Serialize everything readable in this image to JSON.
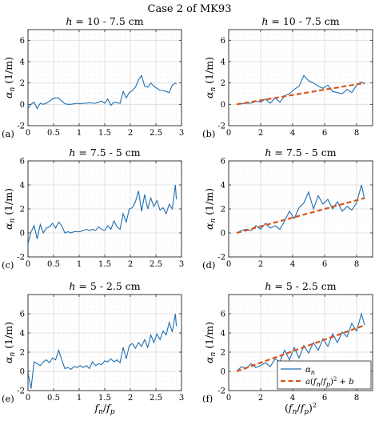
{
  "figure": {
    "title": "Case 2 of MK93",
    "xlabel_left": "f_n / f_p",
    "xlabel_right": "(f_n / f_p)^2",
    "ylabel": "α_n (1/m)",
    "legend": [
      {
        "label": "α_n",
        "style": "solid",
        "color": "#1f6fb0"
      },
      {
        "label": "a(f_n/f_p)^2 + b",
        "style": "dashed",
        "color": "#d95319"
      }
    ],
    "legend_placement": "bottom-right of panel (f)"
  },
  "colors": {
    "data": "#1f6fb0",
    "fit": "#d95319",
    "grid": "#d9d9d9"
  },
  "chart_data": [
    {
      "type": "line",
      "panel": "(a)",
      "title": "h = 10 - 7.5 cm",
      "xlim": [
        0,
        3
      ],
      "ylim": [
        -2,
        7
      ],
      "xticks": [
        0,
        0.5,
        1,
        1.5,
        2,
        2.5,
        3
      ],
      "xtick_labels": [
        "0",
        "0.5",
        "1",
        "1.5",
        "2",
        "2.5",
        "3"
      ],
      "yticks": [
        -2,
        0,
        2,
        4,
        6
      ],
      "ytick_labels": [
        "-2",
        "0",
        "2",
        "4",
        "6"
      ],
      "grid": true,
      "series": [
        {
          "x": [
            0.0,
            0.06,
            0.12,
            0.18,
            0.24,
            0.3,
            0.36,
            0.42,
            0.48,
            0.54,
            0.6,
            0.66,
            0.72,
            0.78,
            0.84,
            0.9,
            0.96,
            1.02,
            1.08,
            1.14,
            1.2,
            1.26,
            1.32,
            1.38,
            1.44,
            1.5,
            1.56,
            1.62,
            1.68,
            1.74,
            1.8,
            1.86,
            1.92,
            1.98,
            2.04,
            2.1,
            2.16,
            2.22,
            2.28,
            2.34,
            2.4,
            2.46,
            2.52,
            2.58,
            2.64,
            2.7,
            2.76,
            2.82,
            2.88,
            2.9
          ],
          "y": [
            -0.4,
            0.0,
            0.2,
            -0.4,
            0.1,
            0.0,
            0.1,
            0.3,
            0.5,
            0.6,
            0.6,
            0.3,
            0.05,
            0.0,
            0.0,
            0.05,
            0.1,
            0.05,
            0.1,
            0.1,
            0.15,
            0.1,
            0.1,
            0.2,
            0.3,
            0.1,
            0.5,
            -0.1,
            0.2,
            0.15,
            0.1,
            1.2,
            0.6,
            1.1,
            1.3,
            1.6,
            2.3,
            2.7,
            1.7,
            1.6,
            2.0,
            1.7,
            1.5,
            1.3,
            1.3,
            1.2,
            1.1,
            1.8,
            2.0,
            1.9
          ]
        }
      ]
    },
    {
      "type": "line",
      "panel": "(b)",
      "title": "h = 10 - 7.5 cm",
      "xlim": [
        0,
        9
      ],
      "ylim": [
        -2,
        7
      ],
      "xticks": [
        0,
        2,
        4,
        6,
        8
      ],
      "xtick_labels": [
        "0",
        "2",
        "4",
        "6",
        "8"
      ],
      "yticks": [
        -2,
        0,
        2,
        4,
        6
      ],
      "ytick_labels": [
        "-2",
        "0",
        "2",
        "4",
        "6"
      ],
      "grid": true,
      "series": [
        {
          "name": "α_n",
          "x": [
            0.5,
            0.8,
            1.1,
            1.4,
            1.7,
            2.0,
            2.3,
            2.6,
            2.9,
            3.2,
            3.5,
            3.8,
            4.1,
            4.4,
            4.7,
            5.0,
            5.3,
            5.6,
            5.9,
            6.2,
            6.5,
            6.8,
            7.1,
            7.4,
            7.7,
            8.0,
            8.3,
            8.5
          ],
          "y": [
            0.0,
            0.05,
            0.1,
            0.1,
            0.3,
            0.2,
            0.5,
            0.1,
            0.6,
            0.2,
            0.8,
            1.0,
            1.4,
            1.7,
            2.7,
            2.2,
            2.0,
            1.7,
            1.5,
            1.8,
            1.2,
            1.1,
            1.0,
            1.4,
            1.1,
            1.8,
            2.1,
            1.9
          ]
        },
        {
          "name": "a(f_n/f_p)^2 + b",
          "style": "dashed",
          "x": [
            0.5,
            8.5
          ],
          "y": [
            0.0,
            2.0
          ]
        }
      ]
    },
    {
      "type": "line",
      "panel": "(c)",
      "title": "h = 7.5 - 5 cm",
      "xlim": [
        0,
        3
      ],
      "ylim": [
        -2,
        6
      ],
      "xticks": [
        0,
        0.5,
        1,
        1.5,
        2,
        2.5,
        3
      ],
      "xtick_labels": [
        "0",
        "0.5",
        "1",
        "1.5",
        "2",
        "2.5",
        "3"
      ],
      "yticks": [
        -2,
        0,
        2,
        4,
        6
      ],
      "ytick_labels": [
        "-2",
        "0",
        "2",
        "4",
        "6"
      ],
      "grid": true,
      "series": [
        {
          "x": [
            0.0,
            0.06,
            0.12,
            0.18,
            0.24,
            0.3,
            0.36,
            0.42,
            0.48,
            0.54,
            0.6,
            0.66,
            0.72,
            0.78,
            0.84,
            0.9,
            0.96,
            1.02,
            1.08,
            1.14,
            1.2,
            1.26,
            1.32,
            1.38,
            1.44,
            1.5,
            1.56,
            1.62,
            1.68,
            1.74,
            1.8,
            1.86,
            1.92,
            1.98,
            2.04,
            2.1,
            2.16,
            2.22,
            2.28,
            2.34,
            2.4,
            2.46,
            2.52,
            2.58,
            2.64,
            2.7,
            2.76,
            2.82,
            2.88,
            2.9
          ],
          "y": [
            -0.9,
            0.1,
            0.6,
            -0.5,
            0.7,
            0.0,
            0.4,
            0.5,
            0.8,
            0.4,
            0.9,
            0.6,
            0.0,
            0.1,
            0.0,
            0.1,
            0.1,
            0.1,
            0.2,
            0.3,
            0.2,
            0.3,
            0.2,
            0.5,
            0.3,
            0.2,
            0.6,
            0.3,
            1.0,
            0.5,
            0.3,
            1.6,
            0.9,
            2.0,
            2.1,
            2.6,
            3.5,
            1.8,
            3.2,
            2.0,
            2.9,
            2.2,
            2.7,
            1.9,
            2.1,
            1.6,
            2.4,
            2.0,
            4.0,
            2.8
          ]
        }
      ]
    },
    {
      "type": "line",
      "panel": "(d)",
      "title": "h = 7.5 - 5 cm",
      "xlim": [
        0,
        9
      ],
      "ylim": [
        -2,
        6
      ],
      "xticks": [
        0,
        2,
        4,
        6,
        8
      ],
      "xtick_labels": [
        "0",
        "2",
        "4",
        "6",
        "8"
      ],
      "yticks": [
        -2,
        0,
        2,
        4,
        6
      ],
      "ytick_labels": [
        "-2",
        "0",
        "2",
        "4",
        "6"
      ],
      "grid": true,
      "series": [
        {
          "name": "α_n",
          "x": [
            0.5,
            0.8,
            1.1,
            1.4,
            1.7,
            2.0,
            2.3,
            2.6,
            2.9,
            3.2,
            3.5,
            3.8,
            4.1,
            4.4,
            4.7,
            5.0,
            5.3,
            5.6,
            5.9,
            6.2,
            6.5,
            6.8,
            7.1,
            7.4,
            7.7,
            8.0,
            8.3,
            8.5
          ],
          "y": [
            0.0,
            0.2,
            0.3,
            0.2,
            0.6,
            0.3,
            0.8,
            0.4,
            0.6,
            0.3,
            1.0,
            1.8,
            1.2,
            2.1,
            2.5,
            3.4,
            2.0,
            3.1,
            2.4,
            2.8,
            2.0,
            2.6,
            1.8,
            2.2,
            1.9,
            2.5,
            4.0,
            2.8
          ]
        },
        {
          "name": "a(f_n/f_p)^2 + b",
          "style": "dashed",
          "x": [
            0.5,
            8.5
          ],
          "y": [
            0.0,
            2.9
          ]
        }
      ]
    },
    {
      "type": "line",
      "panel": "(e)",
      "title": "h = 5 - 2.5 cm",
      "xlim": [
        0,
        3
      ],
      "ylim": [
        -2,
        8
      ],
      "xticks": [
        0,
        0.5,
        1,
        1.5,
        2,
        2.5,
        3
      ],
      "xtick_labels": [
        "0",
        "0.5",
        "1",
        "1.5",
        "2",
        "2.5",
        "3"
      ],
      "yticks": [
        -2,
        0,
        2,
        4,
        6
      ],
      "ytick_labels": [
        "-2",
        "0",
        "2",
        "4",
        "6"
      ],
      "grid": true,
      "series": [
        {
          "x": [
            0.0,
            0.06,
            0.12,
            0.18,
            0.24,
            0.3,
            0.36,
            0.42,
            0.48,
            0.54,
            0.6,
            0.66,
            0.72,
            0.78,
            0.84,
            0.9,
            0.96,
            1.02,
            1.08,
            1.14,
            1.2,
            1.26,
            1.32,
            1.38,
            1.44,
            1.5,
            1.56,
            1.62,
            1.68,
            1.74,
            1.8,
            1.86,
            1.92,
            1.98,
            2.04,
            2.1,
            2.16,
            2.22,
            2.28,
            2.34,
            2.4,
            2.46,
            2.52,
            2.58,
            2.64,
            2.7,
            2.76,
            2.82,
            2.88,
            2.9
          ],
          "y": [
            -0.1,
            -1.8,
            1.0,
            0.8,
            0.6,
            1.0,
            1.2,
            0.9,
            1.4,
            1.2,
            2.2,
            1.2,
            0.3,
            0.4,
            0.2,
            0.5,
            0.4,
            0.6,
            0.4,
            0.6,
            0.3,
            1.0,
            0.6,
            0.8,
            0.7,
            1.1,
            1.0,
            1.3,
            1.0,
            1.2,
            0.9,
            2.5,
            1.3,
            2.7,
            2.9,
            2.4,
            3.0,
            2.6,
            3.3,
            2.5,
            3.8,
            3.0,
            3.9,
            3.3,
            4.2,
            3.8,
            5.1,
            4.1,
            6.0,
            4.7
          ]
        }
      ]
    },
    {
      "type": "line",
      "panel": "(f)",
      "title": "h = 5 - 2.5 cm",
      "xlim": [
        0,
        9
      ],
      "ylim": [
        -2,
        8
      ],
      "xticks": [
        0,
        2,
        4,
        6,
        8
      ],
      "xtick_labels": [
        "0",
        "2",
        "4",
        "6",
        "8"
      ],
      "yticks": [
        -2,
        0,
        2,
        4,
        6
      ],
      "ytick_labels": [
        "-2",
        "0",
        "2",
        "4",
        "6"
      ],
      "grid": true,
      "series": [
        {
          "name": "α_n",
          "x": [
            0.5,
            0.8,
            1.1,
            1.4,
            1.7,
            2.0,
            2.3,
            2.6,
            2.9,
            3.2,
            3.5,
            3.8,
            4.1,
            4.4,
            4.7,
            5.0,
            5.3,
            5.6,
            5.9,
            6.2,
            6.5,
            6.8,
            7.1,
            7.4,
            7.7,
            8.0,
            8.3,
            8.5
          ],
          "y": [
            0.0,
            0.5,
            0.3,
            0.8,
            0.4,
            0.6,
            0.9,
            0.5,
            1.3,
            1.0,
            2.2,
            1.2,
            2.5,
            1.4,
            2.7,
            1.9,
            3.0,
            2.2,
            3.4,
            2.6,
            3.9,
            3.0,
            4.1,
            3.6,
            5.0,
            4.2,
            6.0,
            4.8
          ]
        },
        {
          "name": "a(f_n/f_p)^2 + b",
          "style": "dashed",
          "x": [
            0.5,
            8.5
          ],
          "y": [
            0.0,
            4.8
          ]
        }
      ]
    }
  ]
}
